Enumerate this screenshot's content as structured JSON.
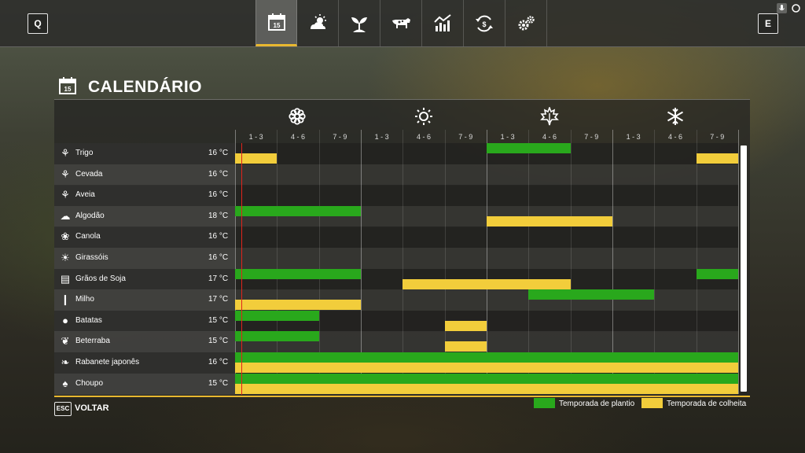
{
  "topbar": {
    "prev_key": "Q",
    "next_key": "E",
    "calendar_day": "15",
    "tabs": [
      {
        "name": "calendar",
        "icon": "calendar-icon",
        "active": true
      },
      {
        "name": "weather",
        "icon": "weather-icon",
        "active": false
      },
      {
        "name": "crops",
        "icon": "sprout-icon",
        "active": false
      },
      {
        "name": "animals",
        "icon": "cow-icon",
        "active": false
      },
      {
        "name": "prices",
        "icon": "chart-icon",
        "active": false
      },
      {
        "name": "finances",
        "icon": "cycle-money-icon",
        "active": false
      },
      {
        "name": "settings",
        "icon": "gears-icon",
        "active": false
      }
    ]
  },
  "page": {
    "title": "CALENDÁRIO",
    "title_icon_day": "15"
  },
  "calendar": {
    "seasons": [
      {
        "name": "spring",
        "icon": "flower-icon"
      },
      {
        "name": "summer",
        "icon": "sun-icon"
      },
      {
        "name": "autumn",
        "icon": "leaf-icon"
      },
      {
        "name": "winter",
        "icon": "snowflake-icon"
      }
    ],
    "periods": [
      "1 - 3",
      "4 - 6",
      "7 - 9",
      "1 - 3",
      "4 - 6",
      "7 - 9",
      "1 - 3",
      "4 - 6",
      "7 - 9",
      "1 - 3",
      "4 - 6",
      "7 - 9"
    ],
    "today_period_fraction": 0.15,
    "crops": [
      {
        "name": "Trigo",
        "temp": "16 °C",
        "icon": "wheat-icon",
        "plant": [
          [
            6,
            7
          ]
        ],
        "harvest": [
          [
            0,
            0
          ],
          [
            11,
            11
          ]
        ]
      },
      {
        "name": "Cevada",
        "temp": "16 °C",
        "icon": "barley-icon",
        "plant": [],
        "harvest": []
      },
      {
        "name": "Aveia",
        "temp": "16 °C",
        "icon": "oat-icon",
        "plant": [],
        "harvest": []
      },
      {
        "name": "Algodão",
        "temp": "18 °C",
        "icon": "cotton-icon",
        "plant": [
          [
            0,
            2
          ]
        ],
        "harvest": [
          [
            6,
            8
          ]
        ]
      },
      {
        "name": "Canola",
        "temp": "16 °C",
        "icon": "canola-icon",
        "plant": [],
        "harvest": []
      },
      {
        "name": "Girassóis",
        "temp": "16 °C",
        "icon": "sunflower-icon",
        "plant": [],
        "harvest": []
      },
      {
        "name": "Grãos de Soja",
        "temp": "17 °C",
        "icon": "soybean-icon",
        "plant": [
          [
            0,
            2
          ],
          [
            11,
            11
          ]
        ],
        "harvest": [
          [
            4,
            7
          ]
        ]
      },
      {
        "name": "Milho",
        "temp": "17 °C",
        "icon": "corn-icon",
        "plant": [
          [
            7,
            9
          ]
        ],
        "harvest": [
          [
            0,
            2
          ]
        ]
      },
      {
        "name": "Batatas",
        "temp": "15 °C",
        "icon": "potato-icon",
        "plant": [
          [
            0,
            1
          ]
        ],
        "harvest": [
          [
            5,
            5
          ]
        ]
      },
      {
        "name": "Beterraba",
        "temp": "15 °C",
        "icon": "sugarbeet-icon",
        "plant": [
          [
            0,
            1
          ]
        ],
        "harvest": [
          [
            5,
            5
          ]
        ]
      },
      {
        "name": "Rabanete japonês",
        "temp": "16 °C",
        "icon": "radish-icon",
        "plant": [
          [
            0,
            11
          ]
        ],
        "harvest": [
          [
            0,
            11
          ]
        ]
      },
      {
        "name": "Choupo",
        "temp": "15 °C",
        "icon": "poplar-icon",
        "plant": [
          [
            0,
            11
          ]
        ],
        "harvest": [
          [
            0,
            11
          ]
        ]
      }
    ]
  },
  "footer": {
    "back_key": "ESC",
    "back_label": "VOLTAR",
    "legend": [
      {
        "type": "plant",
        "label": "Temporada de plantio",
        "color": "#29a81c"
      },
      {
        "type": "harvest",
        "label": "Temporada de colheita",
        "color": "#f2cd3b"
      }
    ]
  }
}
